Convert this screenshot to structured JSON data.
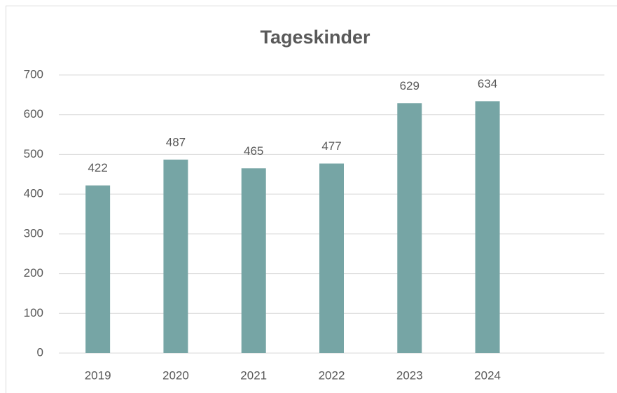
{
  "chart_data": {
    "type": "bar",
    "title": "Tageskinder",
    "categories": [
      "2019",
      "2020",
      "2021",
      "2022",
      "2023",
      "2024",
      null
    ],
    "values": [
      422,
      487,
      465,
      477,
      629,
      634,
      null
    ],
    "color": "#76a5a5",
    "ylim": [
      0,
      700
    ],
    "yticks": [
      0,
      100,
      200,
      300,
      400,
      500,
      600,
      700
    ],
    "grid": true
  }
}
